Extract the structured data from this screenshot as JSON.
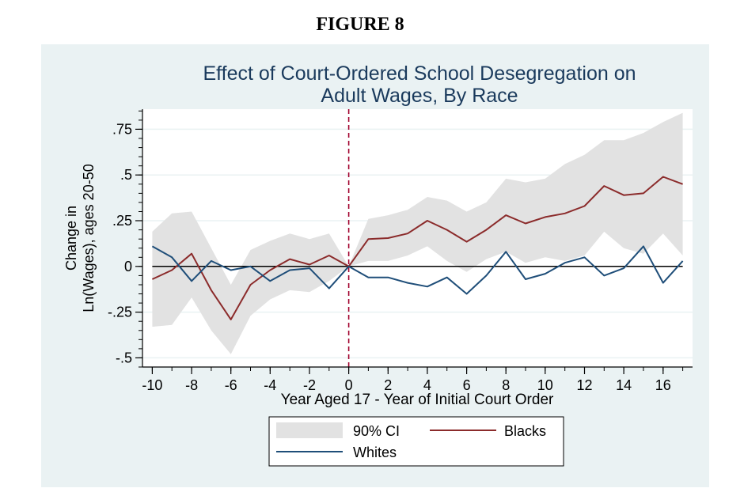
{
  "figure_label": "FIGURE 8",
  "chart_data": {
    "type": "line",
    "title_lines": [
      "Effect of Court-Ordered School Desegregation on",
      "Adult Wages, By Race"
    ],
    "xlabel": "Year Aged 17 - Year of Initial Court Order",
    "ylabel_lines": [
      "Change in",
      "Ln(Wages), ages 20-50"
    ],
    "xlim": [
      -10.5,
      17.5
    ],
    "ylim": [
      -0.55,
      0.86
    ],
    "x_ticks": [
      -10,
      -8,
      -6,
      -4,
      -2,
      0,
      2,
      4,
      6,
      8,
      10,
      12,
      14,
      16
    ],
    "x_tick_labels": [
      "-10",
      "-8",
      "-6",
      "-4",
      "-2",
      "0",
      "2",
      "4",
      "6",
      "8",
      "10",
      "12",
      "14",
      "16"
    ],
    "y_ticks": [
      -0.5,
      -0.25,
      0,
      0.25,
      0.5,
      0.75
    ],
    "y_tick_labels": [
      "-.5",
      "-.25",
      "0",
      ".25",
      ".5",
      ".75"
    ],
    "reference_lines": {
      "horizontal_y": 0,
      "vertical_x": 0
    },
    "grid": "horizontal",
    "legend_placement": "bottom",
    "x": [
      -10,
      -9,
      -8,
      -7,
      -6,
      -5,
      -4,
      -3,
      -2,
      -1,
      0,
      1,
      2,
      3,
      4,
      5,
      6,
      7,
      8,
      9,
      10,
      11,
      12,
      13,
      14,
      15,
      16,
      17
    ],
    "ci": {
      "name": "90% CI",
      "lower": [
        -0.33,
        -0.32,
        -0.17,
        -0.35,
        -0.48,
        -0.27,
        -0.18,
        -0.13,
        -0.14,
        -0.08,
        0.0,
        0.03,
        0.03,
        0.06,
        0.11,
        0.03,
        -0.03,
        0.04,
        0.08,
        0.02,
        0.05,
        0.03,
        0.06,
        0.19,
        0.1,
        0.07,
        0.18,
        0.06
      ],
      "upper": [
        0.19,
        0.29,
        0.3,
        0.1,
        -0.1,
        0.09,
        0.14,
        0.18,
        0.15,
        0.18,
        0.0,
        0.26,
        0.28,
        0.31,
        0.38,
        0.36,
        0.3,
        0.35,
        0.48,
        0.46,
        0.48,
        0.56,
        0.61,
        0.69,
        0.69,
        0.73,
        0.79,
        0.84
      ]
    },
    "series": [
      {
        "name": "Blacks",
        "color": "#8b2b2b",
        "values": [
          -0.07,
          -0.02,
          0.07,
          -0.13,
          -0.29,
          -0.1,
          -0.02,
          0.04,
          0.01,
          0.06,
          0.0,
          0.15,
          0.155,
          0.18,
          0.25,
          0.2,
          0.135,
          0.2,
          0.28,
          0.235,
          0.27,
          0.29,
          0.33,
          0.44,
          0.39,
          0.4,
          0.49,
          0.45
        ]
      },
      {
        "name": "Whites",
        "color": "#1f4e79",
        "values": [
          0.11,
          0.05,
          -0.08,
          0.03,
          -0.02,
          0.0,
          -0.08,
          -0.02,
          -0.01,
          -0.12,
          0.0,
          -0.06,
          -0.06,
          -0.09,
          -0.11,
          -0.06,
          -0.15,
          -0.05,
          0.08,
          -0.07,
          -0.04,
          0.02,
          0.05,
          -0.05,
          -0.01,
          0.11,
          -0.09,
          0.03
        ]
      }
    ],
    "colors": {
      "panel_bg": "#eaf2f3",
      "plot_bg": "#ffffff",
      "ci_fill": "#e2e2e2",
      "vline": "#a0002c",
      "grid": "#eaf2f3"
    }
  }
}
